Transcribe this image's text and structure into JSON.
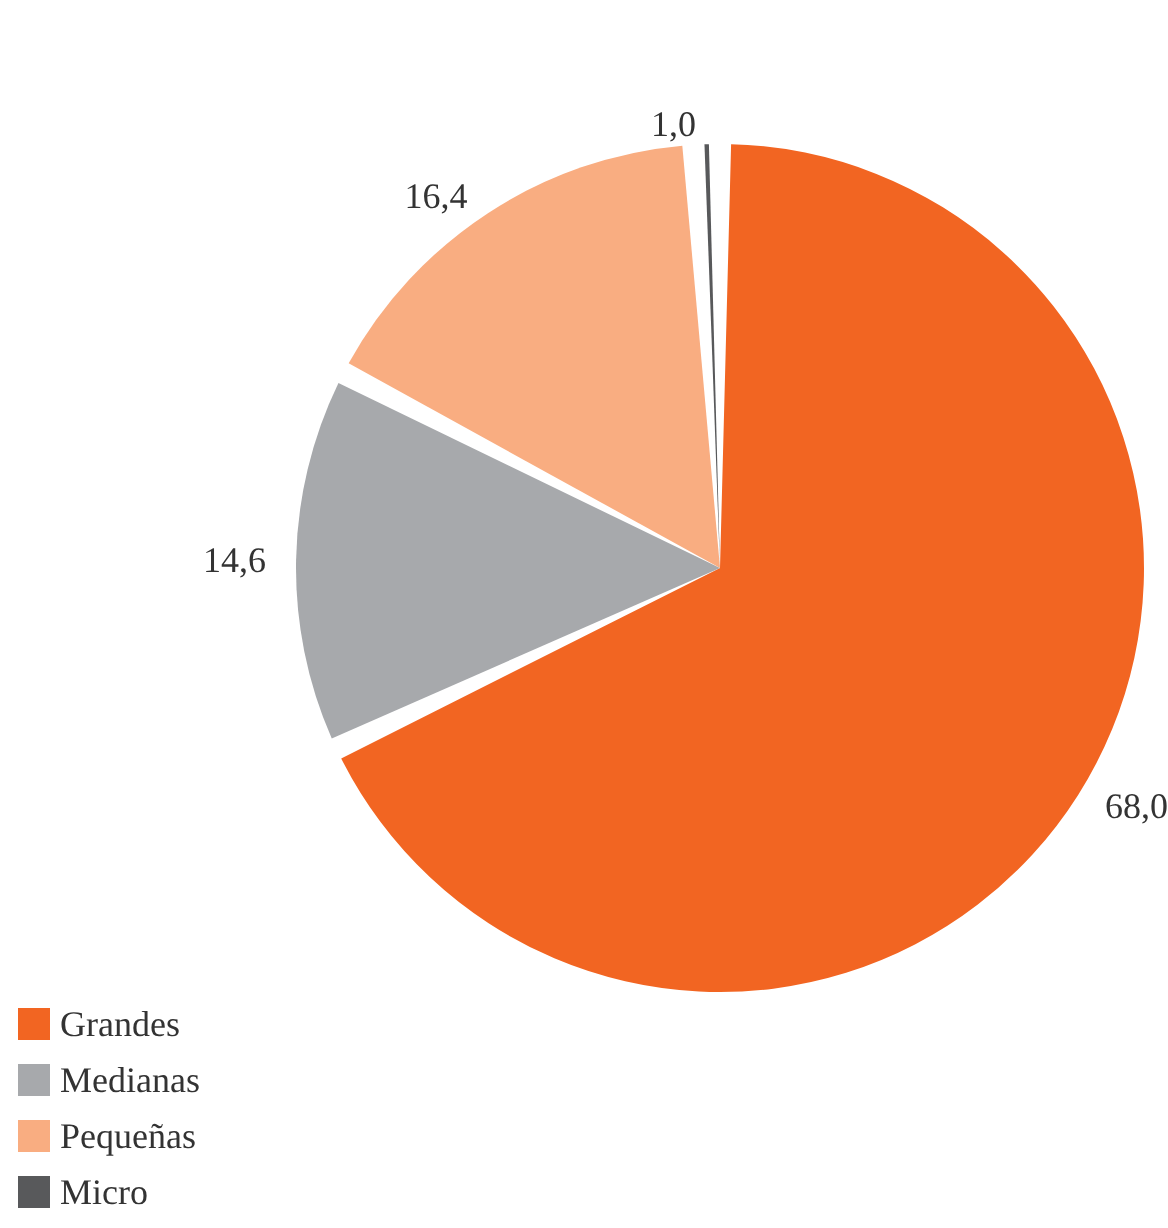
{
  "chart_data": {
    "type": "pie",
    "categories": [
      "Grandes",
      "Medianas",
      "Pequeñas",
      "Micro"
    ],
    "values": [
      68.0,
      14.6,
      16.4,
      1.0
    ],
    "value_labels": [
      "68,0",
      "14,6",
      "16,4",
      "1,0"
    ],
    "colors": [
      "#f26522",
      "#a7a9ac",
      "#f9ad81",
      "#58595b"
    ],
    "legend": "bottom left"
  }
}
